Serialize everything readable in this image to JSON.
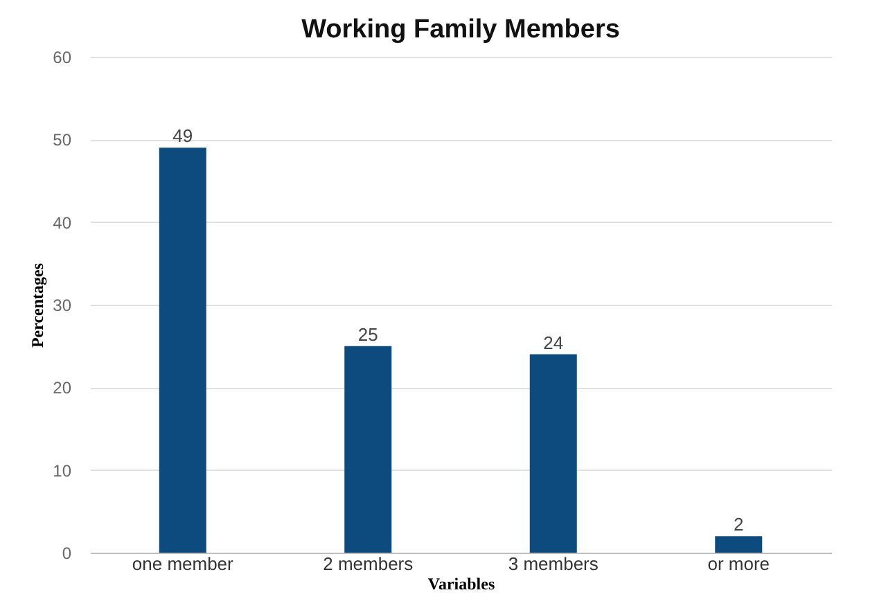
{
  "chart_data": {
    "type": "bar",
    "title": "Working Family Members",
    "xlabel": "Variables",
    "ylabel": "Percentages",
    "categories": [
      "one member",
      "2 members",
      "3 members",
      "or more"
    ],
    "values": [
      49,
      25,
      24,
      2
    ],
    "color": "#0d4a7e",
    "ylim": [
      0,
      60
    ],
    "yticks": [
      0,
      10,
      20,
      30,
      40,
      50,
      60
    ],
    "grid": "y",
    "data_labels": true
  }
}
